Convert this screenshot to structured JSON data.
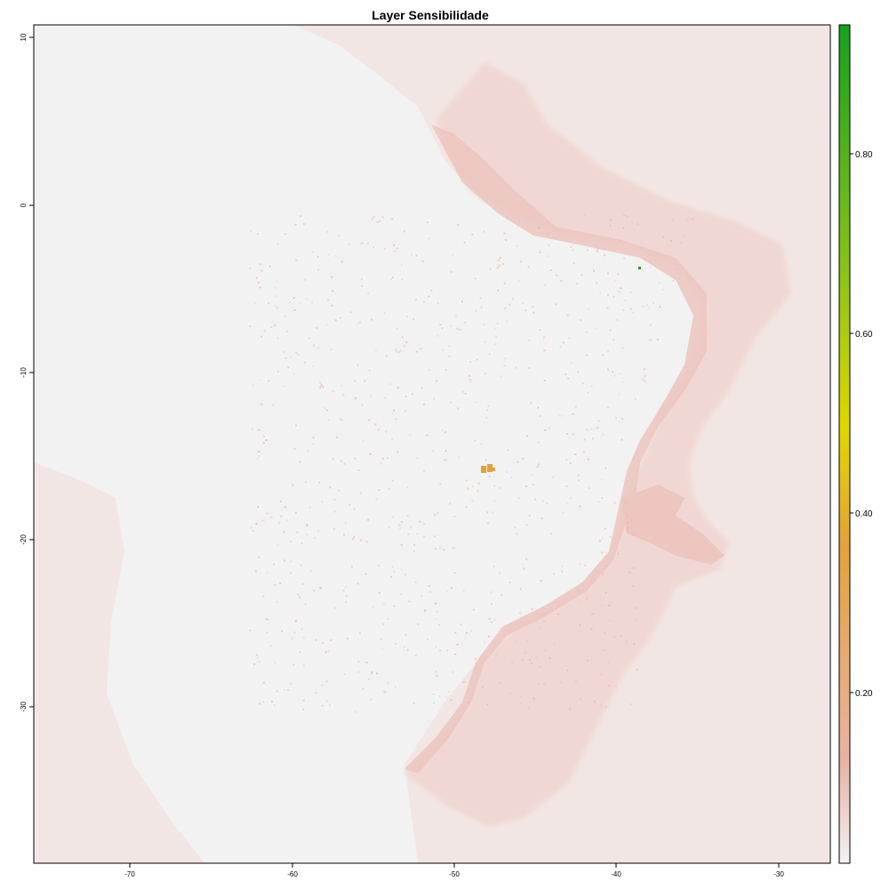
{
  "title": "Layer Sensibilidade",
  "colors": {
    "background": "#f2f2f2",
    "sea_tint": "#f2e6e4",
    "sea_shelf": "#f0d7d3",
    "coast_band": "#ecc6bf",
    "low": "#e8b3a6",
    "mid": "#e3a23a",
    "yellow": "#e0d800",
    "high": "#17a01e",
    "frame": "#000000"
  },
  "map": {
    "x_ticks": [
      "-70",
      "-60",
      "-50",
      "-40",
      "-30"
    ],
    "y_ticks": [
      "10",
      "0",
      "-10",
      "-20",
      "-30"
    ]
  },
  "legend": {
    "ticks": [
      "0.20",
      "0.40",
      "0.60",
      "0.80"
    ],
    "gradient": [
      "#f2f2f2",
      "#e8b3a6",
      "#e3a23a",
      "#e0d800",
      "#8dc31a",
      "#17a01e"
    ]
  }
}
